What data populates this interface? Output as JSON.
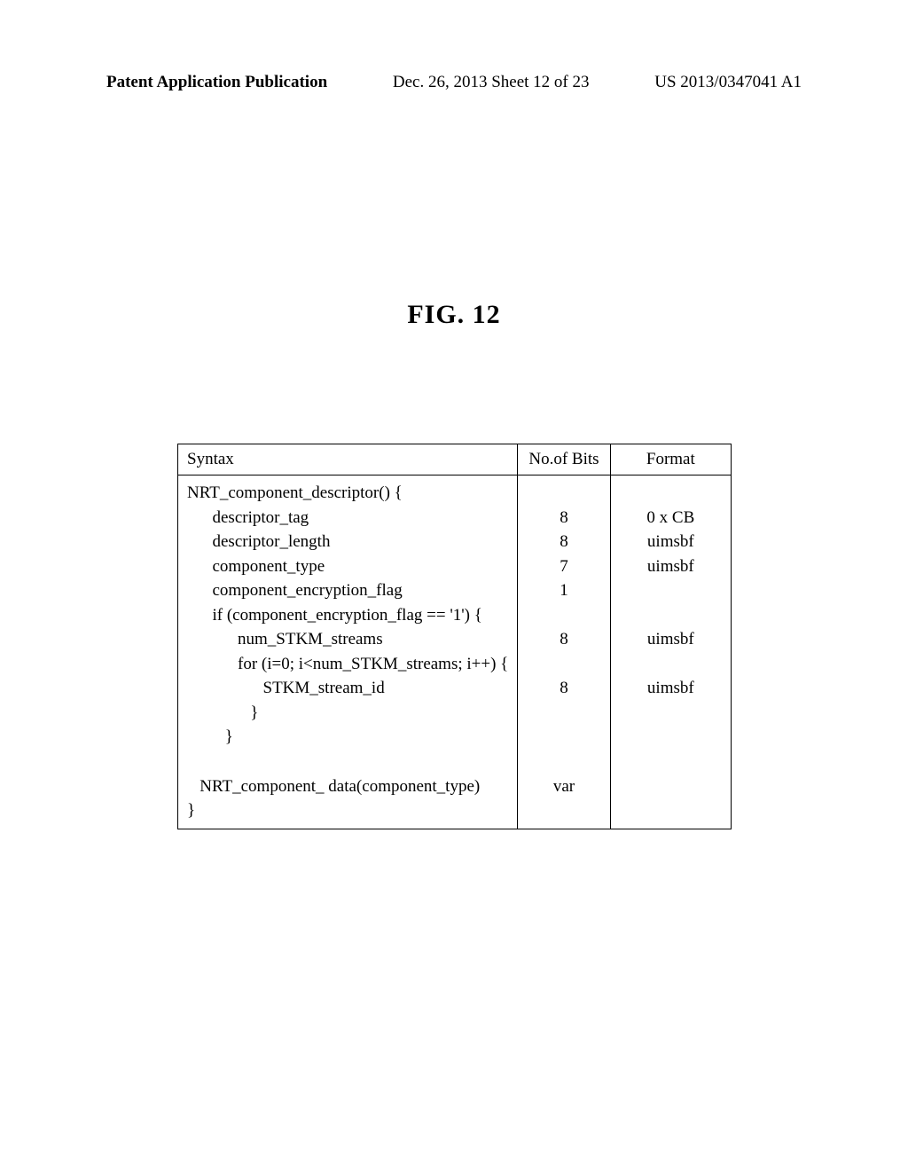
{
  "header": {
    "left": "Patent Application Publication",
    "center": "Dec. 26, 2013  Sheet 12 of 23",
    "right": "US 2013/0347041 A1"
  },
  "figure": {
    "title": "FIG.  12"
  },
  "table": {
    "columns": {
      "syntax": "Syntax",
      "bits": "No.of Bits",
      "format": "Format"
    },
    "rows": [
      {
        "syntax": "NRT_component_descriptor() {",
        "bits": "",
        "format": ""
      },
      {
        "syntax": "      descriptor_tag",
        "bits": "8",
        "format": "0 x CB"
      },
      {
        "syntax": "      descriptor_length",
        "bits": "8",
        "format": "uimsbf"
      },
      {
        "syntax": "      component_type",
        "bits": "7",
        "format": "uimsbf"
      },
      {
        "syntax": "      component_encryption_flag",
        "bits": "1",
        "format": ""
      },
      {
        "syntax": "      if (component_encryption_flag == '1') {",
        "bits": "",
        "format": ""
      },
      {
        "syntax": "            num_STKM_streams",
        "bits": "8",
        "format": "uimsbf"
      },
      {
        "syntax": "            for (i=0; i<num_STKM_streams; i++) {",
        "bits": "",
        "format": ""
      },
      {
        "syntax": "                  STKM_stream_id",
        "bits": "8",
        "format": "uimsbf"
      },
      {
        "syntax": "               }",
        "bits": "",
        "format": ""
      },
      {
        "syntax": "         }",
        "bits": "",
        "format": ""
      },
      {
        "syntax": "",
        "bits": "",
        "format": ""
      },
      {
        "syntax": "   NRT_component_ data(component_type)",
        "bits": "var",
        "format": ""
      },
      {
        "syntax": "}",
        "bits": "",
        "format": ""
      }
    ]
  }
}
